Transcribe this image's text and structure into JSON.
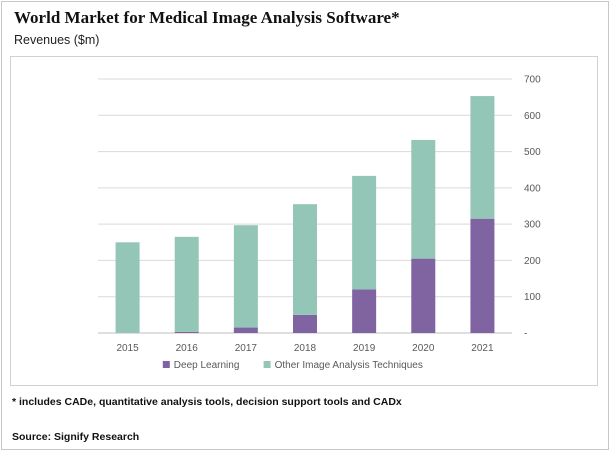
{
  "chart_data": {
    "type": "bar",
    "stacked": true,
    "title": "World Market for Medical Image Analysis Software*",
    "subtitle": "Revenues ($m)",
    "categories": [
      "2015",
      "2016",
      "2017",
      "2018",
      "2019",
      "2020",
      "2021"
    ],
    "series": [
      {
        "name": "Deep Learning",
        "values": [
          0,
          3,
          15,
          50,
          120,
          205,
          315
        ],
        "color": "#8064a2"
      },
      {
        "name": "Other Image Analysis Techniques",
        "values": [
          250,
          262,
          282,
          305,
          313,
          327,
          338
        ],
        "color": "#93c6b6"
      }
    ],
    "yticks": [
      "-",
      "100",
      "200",
      "300",
      "400",
      "500",
      "600",
      "700"
    ],
    "ylim": [
      0,
      700
    ],
    "yaxis_side": "right",
    "grid": true,
    "legend_position": "bottom-center",
    "xlabel": "",
    "ylabel": "Revenues ($m)"
  },
  "footnote": "* includes CADe, quantitative analysis tools, decision support tools and CADx",
  "source": "Source: Signify Research",
  "colors": {
    "grid": "#d9d9d9",
    "axis": "#bfbfbf",
    "text": "#595959"
  }
}
